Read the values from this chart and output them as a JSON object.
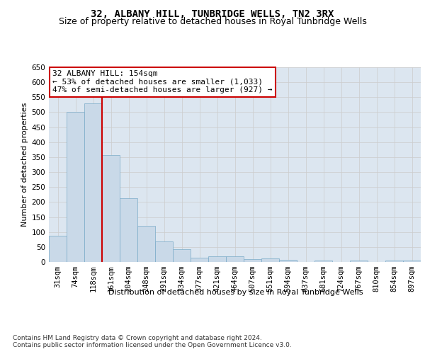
{
  "title": "32, ALBANY HILL, TUNBRIDGE WELLS, TN2 3RX",
  "subtitle": "Size of property relative to detached houses in Royal Tunbridge Wells",
  "xlabel": "Distribution of detached houses by size in Royal Tunbridge Wells",
  "ylabel": "Number of detached properties",
  "footer_line1": "Contains HM Land Registry data © Crown copyright and database right 2024.",
  "footer_line2": "Contains public sector information licensed under the Open Government Licence v3.0.",
  "annotation_title": "32 ALBANY HILL: 154sqm",
  "annotation_line1": "← 53% of detached houses are smaller (1,033)",
  "annotation_line2": "47% of semi-detached houses are larger (927) →",
  "bar_labels": [
    "31sqm",
    "74sqm",
    "118sqm",
    "161sqm",
    "204sqm",
    "248sqm",
    "291sqm",
    "334sqm",
    "377sqm",
    "421sqm",
    "464sqm",
    "507sqm",
    "551sqm",
    "594sqm",
    "637sqm",
    "681sqm",
    "724sqm",
    "767sqm",
    "810sqm",
    "854sqm",
    "897sqm"
  ],
  "bar_values": [
    88,
    500,
    530,
    358,
    212,
    120,
    68,
    42,
    15,
    18,
    18,
    10,
    12,
    8,
    0,
    5,
    0,
    5,
    0,
    5,
    5
  ],
  "bar_color": "#c9d9e8",
  "bar_edge_color": "#7aaac8",
  "vline_color": "#cc0000",
  "vline_position": 2.5,
  "annotation_box_color": "#cc0000",
  "ylim": [
    0,
    650
  ],
  "yticks": [
    0,
    50,
    100,
    150,
    200,
    250,
    300,
    350,
    400,
    450,
    500,
    550,
    600,
    650
  ],
  "grid_color": "#cccccc",
  "plot_bg_color": "#dce6f0",
  "title_fontsize": 10,
  "subtitle_fontsize": 9,
  "axis_label_fontsize": 8,
  "tick_fontsize": 7.5,
  "annotation_fontsize": 8,
  "footer_fontsize": 6.5
}
